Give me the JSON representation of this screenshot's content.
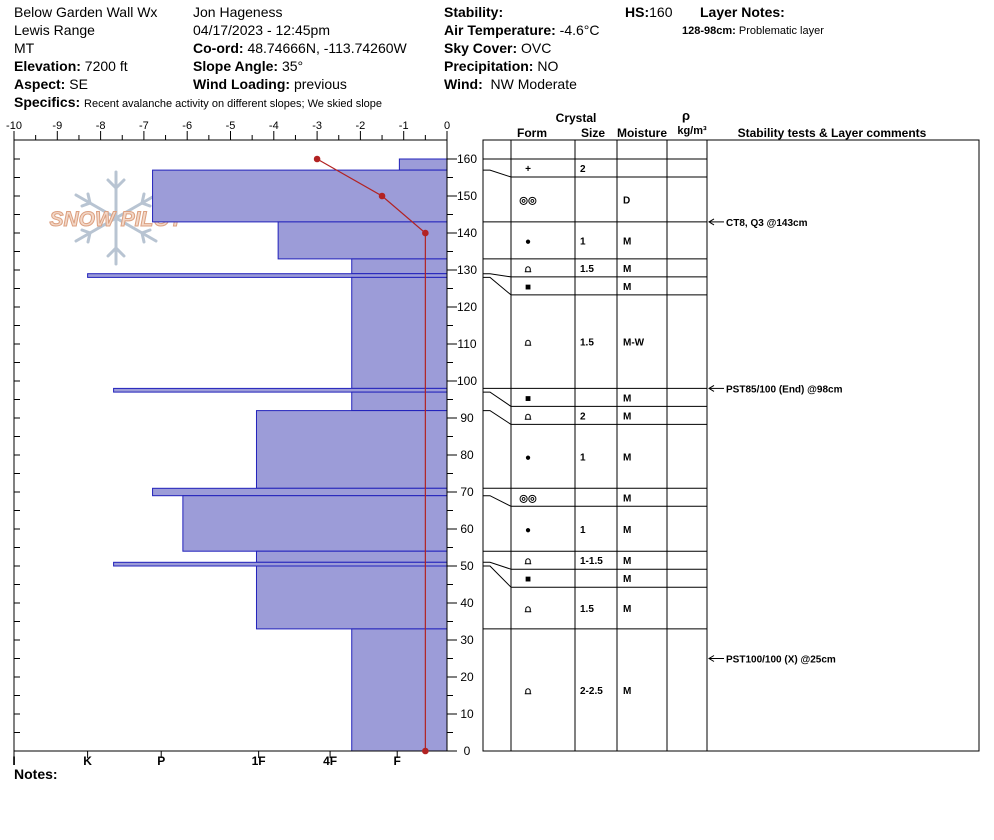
{
  "header": {
    "location": "Below Garden Wall Wx",
    "range": "Lewis Range",
    "state": "MT",
    "elevation_label": "Elevation:",
    "elevation_value": "7200 ft",
    "aspect_label": "Aspect:",
    "aspect_value": "SE",
    "specifics_label": "Specifics:",
    "specifics_value": "Recent avalanche activity on different slopes;  We skied slope",
    "observer": "Jon Hageness",
    "datetime": "04/17/2023 - 12:45pm",
    "coord_label": "Co-ord:",
    "coord_value": "48.74666N, -113.74260W",
    "slope_label": "Slope Angle:",
    "slope_value": "35°",
    "wind_loading_label": "Wind Loading:",
    "wind_loading_value": "previous",
    "stability_label": "Stability:",
    "stability_value": "",
    "air_temp_label": "Air Temperature:",
    "air_temp_value": "-4.6°C",
    "sky_label": "Sky Cover:",
    "sky_value": "OVC",
    "precip_label": "Precipitation:",
    "precip_value": "NO",
    "wind_label": "Wind:",
    "wind_value": "NW Moderate",
    "hs_label": "HS:",
    "hs_value": "160",
    "layer_notes_label": "Layer Notes:",
    "layer_note_range": "128-98cm:",
    "layer_note_text": "Problematic layer",
    "notes_label": "Notes:"
  },
  "logo_text": "SNOW PILOT",
  "colors": {
    "hardness_fill": "#9c9cd8",
    "hardness_stroke": "#2222bb",
    "temp": "#b22222"
  },
  "chart_data": {
    "type": "bar",
    "temperature_axis": {
      "ticks": [
        "-10",
        "-9",
        "-8",
        "-7",
        "-6",
        "-5",
        "-4",
        "-3",
        "-2",
        "-1",
        "0"
      ],
      "range": [
        -10,
        0
      ]
    },
    "height_axis": {
      "ticks": [
        "0",
        "10",
        "20",
        "30",
        "40",
        "50",
        "60",
        "70",
        "80",
        "90",
        "100",
        "110",
        "120",
        "130",
        "140",
        "150",
        "160"
      ],
      "range": [
        0,
        160
      ]
    },
    "hardness_axis": {
      "ticks": [
        "I",
        "K",
        "P",
        "1F",
        "4F",
        "F"
      ],
      "index": [
        10,
        8.3,
        6.6,
        4.35,
        2.7,
        1.15
      ]
    },
    "hardness_layers": [
      {
        "top": 160,
        "bottom": 157,
        "hardness_index": 1.1
      },
      {
        "top": 157,
        "bottom": 143,
        "hardness_index": 6.8
      },
      {
        "top": 143,
        "bottom": 133,
        "hardness_index": 3.9
      },
      {
        "top": 133,
        "bottom": 129,
        "hardness_index": 2.2
      },
      {
        "top": 129,
        "bottom": 128,
        "hardness_index": 8.3
      },
      {
        "top": 128,
        "bottom": 98,
        "hardness_index": 2.2
      },
      {
        "top": 98,
        "bottom": 97,
        "hardness_index": 7.7
      },
      {
        "top": 97,
        "bottom": 92,
        "hardness_index": 2.2
      },
      {
        "top": 92,
        "bottom": 71,
        "hardness_index": 4.4
      },
      {
        "top": 71,
        "bottom": 69,
        "hardness_index": 6.8
      },
      {
        "top": 69,
        "bottom": 54,
        "hardness_index": 6.1
      },
      {
        "top": 54,
        "bottom": 51,
        "hardness_index": 4.4
      },
      {
        "top": 51,
        "bottom": 50,
        "hardness_index": 7.7
      },
      {
        "top": 50,
        "bottom": 33,
        "hardness_index": 4.4
      },
      {
        "top": 33,
        "bottom": 0,
        "hardness_index": 2.2
      }
    ],
    "temperature_profile": [
      {
        "height": 160,
        "temp": -3.0
      },
      {
        "height": 150,
        "temp": -1.5
      },
      {
        "height": 140,
        "temp": -0.5
      },
      {
        "height": 0,
        "temp": -0.5
      }
    ]
  },
  "columns": {
    "crystal": "Crystal",
    "form": "Form",
    "size": "Size",
    "moisture": "Moisture",
    "rho": "ρ",
    "density_unit": "kg/m³",
    "stability": "Stability tests & Layer comments"
  },
  "layers": [
    {
      "top": 160,
      "bottom": 157,
      "form": "+",
      "size": "2",
      "moisture": ""
    },
    {
      "top": 157,
      "bottom": 143,
      "form": "◎◎",
      "size": "",
      "moisture": "D"
    },
    {
      "top": 143,
      "bottom": 133,
      "form": "●",
      "size": "1",
      "moisture": "M"
    },
    {
      "top": 133,
      "bottom": 129,
      "form": "⩍",
      "size": "1.5",
      "moisture": "M"
    },
    {
      "top": 129,
      "bottom": 128,
      "form": "■",
      "size": "",
      "moisture": "M"
    },
    {
      "top": 128,
      "bottom": 98,
      "form": "⩍",
      "size": "1.5",
      "moisture": "M-W"
    },
    {
      "top": 98,
      "bottom": 97,
      "form": "■",
      "size": "",
      "moisture": "M"
    },
    {
      "top": 97,
      "bottom": 92,
      "form": "⩍",
      "size": "2",
      "moisture": "M"
    },
    {
      "top": 92,
      "bottom": 71,
      "form": "●",
      "size": "1",
      "moisture": "M"
    },
    {
      "top": 71,
      "bottom": 69,
      "form": "◎◎",
      "size": "",
      "moisture": "M"
    },
    {
      "top": 69,
      "bottom": 54,
      "form": "●",
      "size": "1",
      "moisture": "M"
    },
    {
      "top": 54,
      "bottom": 51,
      "form": "⩍",
      "size": "1-1.5",
      "moisture": "M"
    },
    {
      "top": 51,
      "bottom": 50,
      "form": "■",
      "size": "",
      "moisture": "M"
    },
    {
      "top": 50,
      "bottom": 33,
      "form": "⩍",
      "size": "1.5",
      "moisture": "M"
    },
    {
      "top": 33,
      "bottom": 0,
      "form": "⩍",
      "size": "2-2.5",
      "moisture": "M"
    }
  ],
  "stability_tests": [
    {
      "height": 143,
      "text": "CT8, Q3 @143cm"
    },
    {
      "height": 98,
      "text": "PST85/100 (End) @98cm"
    },
    {
      "height": 25,
      "text": "PST100/100 (X) @25cm"
    }
  ]
}
